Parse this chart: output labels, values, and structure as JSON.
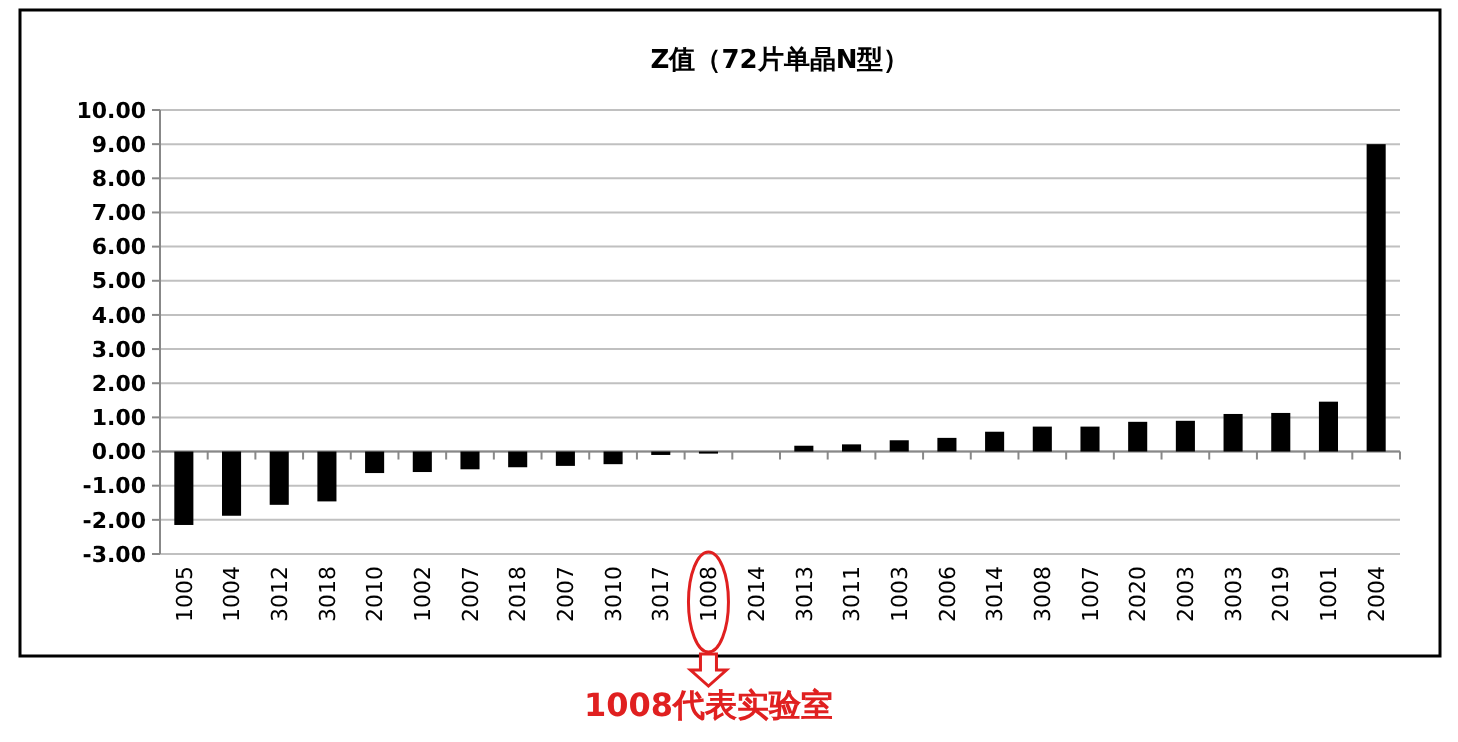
{
  "chart_data": {
    "type": "bar",
    "title": "Z值（72片单晶N型）",
    "categories": [
      "1005",
      "1004",
      "3012",
      "3018",
      "2010",
      "1002",
      "2007",
      "2018",
      "2007",
      "3010",
      "3017",
      "1008",
      "2014",
      "3013",
      "3011",
      "1003",
      "2006",
      "3014",
      "3008",
      "1007",
      "2020",
      "2003",
      "3003",
      "2019",
      "1001",
      "2004"
    ],
    "values": [
      -2.15,
      -1.88,
      -1.56,
      -1.46,
      -0.63,
      -0.6,
      -0.52,
      -0.46,
      -0.42,
      -0.37,
      -0.1,
      -0.06,
      0,
      0.17,
      0.21,
      0.33,
      0.4,
      0.58,
      0.73,
      0.73,
      0.87,
      0.9,
      1.1,
      1.13,
      1.46,
      9.0
    ],
    "color": "#000000",
    "ylim": [
      -3,
      10
    ],
    "yticks": [
      {
        "value": -3,
        "label": "-3.00"
      },
      {
        "value": -2,
        "label": "-2.00"
      },
      {
        "value": -1,
        "label": "-1.00"
      },
      {
        "value": 0,
        "label": "0.00"
      },
      {
        "value": 1,
        "label": "1.00"
      },
      {
        "value": 2,
        "label": "2.00"
      },
      {
        "value": 3,
        "label": "3.00"
      },
      {
        "value": 4,
        "label": "4.00"
      },
      {
        "value": 5,
        "label": "5.00"
      },
      {
        "value": 6,
        "label": "6.00"
      },
      {
        "value": 7,
        "label": "7.00"
      },
      {
        "value": 8,
        "label": "8.00"
      },
      {
        "value": 9,
        "label": "9.00"
      },
      {
        "value": 10,
        "label": "10.00"
      }
    ],
    "grid": "y",
    "annotations": [
      "1008代表实验室"
    ]
  }
}
